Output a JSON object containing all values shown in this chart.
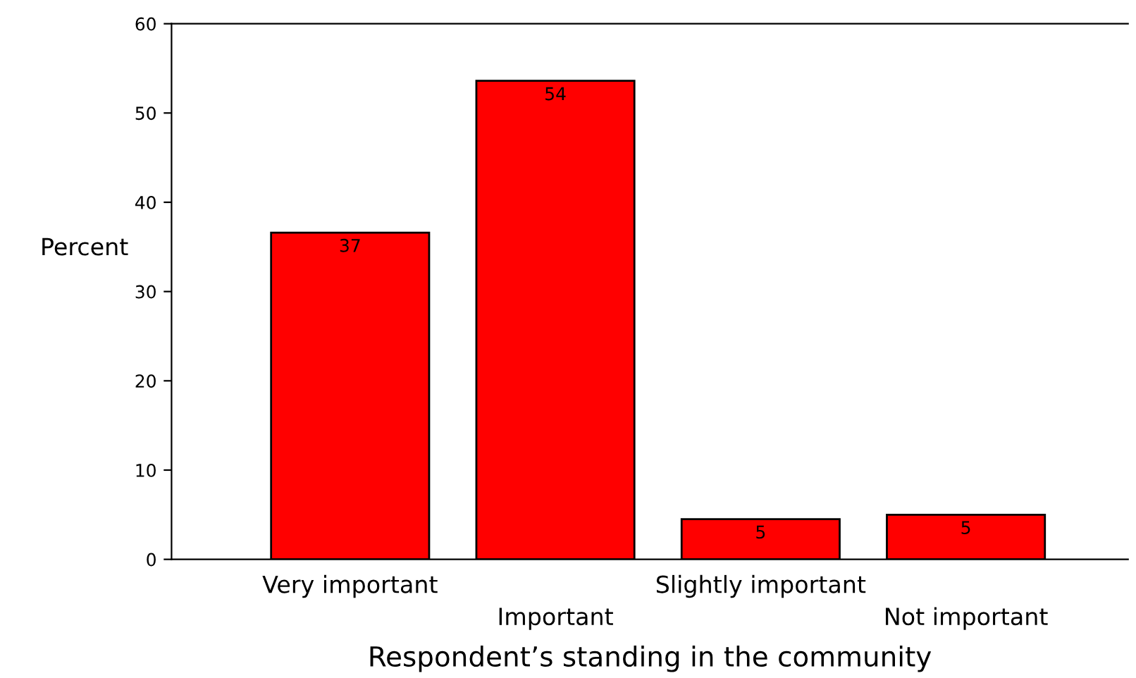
{
  "chart_data": {
    "type": "bar",
    "xlabel": "Respondent’s standing in the community",
    "ylabel": "Percent",
    "categories": [
      "Very important",
      "Important",
      "Slightly important",
      "Not important"
    ],
    "values": [
      36.6,
      53.6,
      4.5,
      5.0
    ],
    "value_labels": [
      "37",
      "54",
      "5",
      "5"
    ],
    "color": "#ff0000",
    "ylim": [
      0,
      60
    ],
    "yticks": [
      0,
      10,
      20,
      30,
      40,
      50,
      60
    ],
    "grid": false,
    "legend": false
  }
}
